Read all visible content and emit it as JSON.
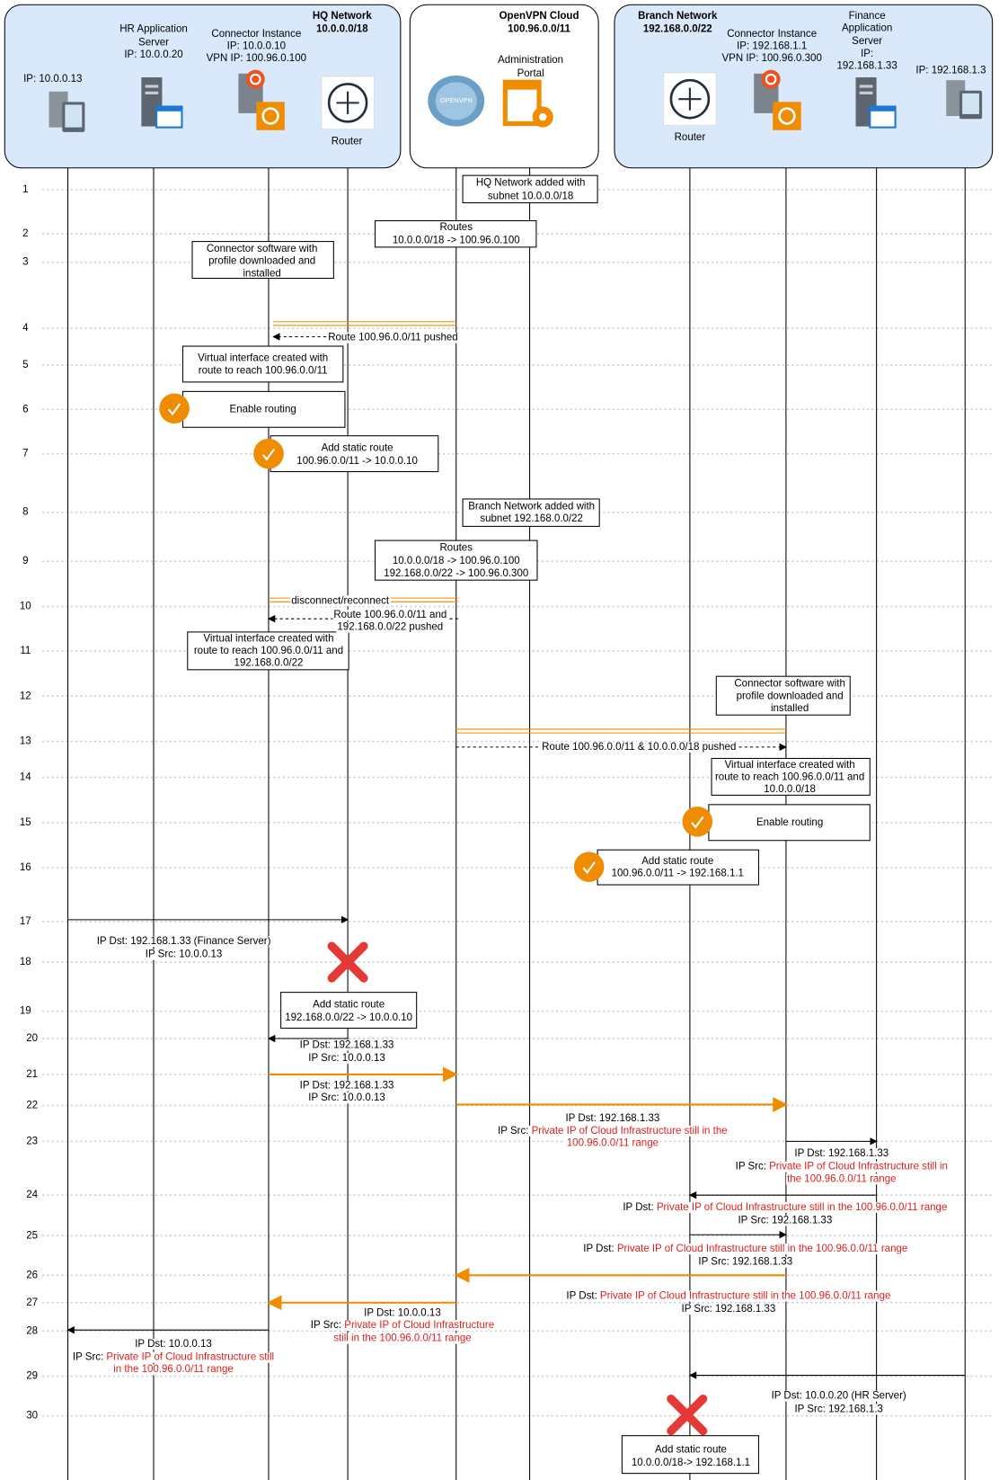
{
  "groups": [
    {
      "title": [
        "HQ Network",
        "10.0.0.0/18"
      ]
    },
    {
      "title": [
        "OpenVPN Cloud",
        "100.96.0.0/11"
      ]
    },
    {
      "title": [
        "Branch Network",
        "192.168.0.0/22"
      ]
    }
  ],
  "nodes": [
    {
      "label": [
        "IP: 10.0.0.13"
      ]
    },
    {
      "label": [
        "HR Application",
        "Server",
        "IP: 10.0.0.20"
      ]
    },
    {
      "label": [
        "Connector Instance",
        "IP: 10.0.0.10",
        "VPN IP: 100.96.0.100"
      ]
    },
    {
      "label": [
        "Router"
      ]
    },
    {
      "label": [
        "Administration",
        "Portal"
      ]
    },
    {
      "label": [
        "Router"
      ]
    },
    {
      "label": [
        "Connector Instance",
        "IP: 192.168.1.1",
        "VPN IP: 100.96.0.300"
      ]
    },
    {
      "label": [
        "Finance",
        "Application",
        "Server",
        "IP:",
        "192.168.1.33"
      ]
    },
    {
      "label": [
        "IP: 192.168.1.3"
      ]
    }
  ],
  "steps": [
    "1",
    "2",
    "3",
    "4",
    "5",
    "6",
    "7",
    "8",
    "9",
    "10",
    "11",
    "12",
    "13",
    "14",
    "15",
    "16",
    "17",
    "18",
    "19",
    "20",
    "21",
    "22",
    "23",
    "24",
    "25",
    "26",
    "27",
    "28",
    "29",
    "30"
  ],
  "notes": [
    {
      "lines": [
        "HQ Network added with",
        "subnet 10.0.0.0/18"
      ]
    },
    {
      "lines": [
        "Routes",
        "10.0.0.0/18 -> 100.96.0.100"
      ]
    },
    {
      "lines": [
        "Connector software with",
        "profile downloaded and",
        "installed"
      ]
    },
    {
      "lines": [
        "Virtual interface created with",
        "route to reach 100.96.0.0/11"
      ]
    },
    {
      "lines": [
        "Enable routing"
      ]
    },
    {
      "lines": [
        "Add static route",
        "100.96.0.0/11 -> 10.0.0.10"
      ]
    },
    {
      "lines": [
        "Branch Network added with",
        "subnet 192.168.0.0/22"
      ]
    },
    {
      "lines": [
        "Routes",
        "10.0.0.0/18 -> 100.96.0.100",
        "192.168.0.0/22 -> 100.96.0.300"
      ]
    },
    {
      "lines": [
        "Virtual interface created with",
        "route to reach 100.96.0.0/11 and",
        "192.168.0.0/22"
      ]
    },
    {
      "lines": [
        "Connector software with",
        "profile downloaded and",
        "installed"
      ]
    },
    {
      "lines": [
        "Virtual interface created with",
        "route to reach 100.96.0.0/11 and",
        "10.0.0.0/18"
      ]
    },
    {
      "lines": [
        "Enable routing"
      ]
    },
    {
      "lines": [
        "Add static route",
        "100.96.0.0/11 -> 192.168.1.1"
      ]
    },
    {
      "lines": [
        "Add static route",
        "192.168.0.0/22 -> 10.0.0.10"
      ]
    },
    {
      "lines": [
        "Add static route",
        "10.0.0.0/18-> 192.168.1.1"
      ]
    }
  ],
  "messages": [
    {
      "label": [
        "Route 100.96.0.0/11 pushed"
      ]
    },
    {
      "label": [
        "disconnect/reconnect"
      ]
    },
    {
      "label": [
        "Route 100.96.0.0/11 and",
        "192.168.0.0/22 pushed"
      ]
    },
    {
      "label": [
        "Route 100.96.0.0/11 & 10.0.0.0/18 pushed"
      ]
    },
    {
      "label": [
        "IP Dst: 192.168.1.33 (Finance Server)",
        "IP Src: 10.0.0.13"
      ]
    },
    {
      "label": [
        "IP Dst: 192.168.1.33",
        "IP Src: 10.0.0.13"
      ]
    },
    {
      "label": [
        "IP Dst: 192.168.1.33",
        "IP Src: 10.0.0.13"
      ]
    },
    {
      "label": [
        "IP Dst: 192.168.1.33",
        {
          "text": "IP Src:",
          "red": "Private IP of Cloud Infrastructure still in the"
        },
        {
          "red": "100.96.0.0/11 range"
        }
      ]
    },
    {
      "label": [
        "IP Dst: 192.168.1.33",
        {
          "text": "IP Src:",
          "red": "Private IP of Cloud Infrastructure still in"
        },
        {
          "red": "the 100.96.0.0/11 range"
        }
      ]
    },
    {
      "label": [
        {
          "text": "IP Dst:",
          "red": "Private IP of Cloud Infrastructure still in the 100.96.0.0/11 range"
        },
        "IP Src: 192.168.1.33"
      ]
    },
    {
      "label": [
        {
          "text": "IP Dst:",
          "red": "Private IP of Cloud Infrastructure still in the 100.96.0.0/11 range"
        },
        "IP Src: 192.168.1.33"
      ]
    },
    {
      "label": [
        {
          "text": "IP Dst:",
          "red": "Private IP of Cloud Infrastructure still in the 100.96.0.0/11 range"
        },
        "IP Src: 192.168.1.33"
      ]
    },
    {
      "label": [
        "IP Dst: 10.0.0.13",
        {
          "text": "IP Src:",
          "red": "Private IP of Cloud Infrastructure"
        },
        {
          "red": "still in the 100.96.0.0/11 range"
        }
      ]
    },
    {
      "label": [
        "IP Dst: 10.0.0.13",
        {
          "text": "IP Src:",
          "red": "Private IP of Cloud Infrastructure still"
        },
        {
          "red": "in the 100.96.0.0/11 range"
        }
      ]
    },
    {
      "label": [
        "IP Dst: 10.0.0.20 (HR Server)",
        "IP Src: 192.168.1.3"
      ]
    }
  ]
}
